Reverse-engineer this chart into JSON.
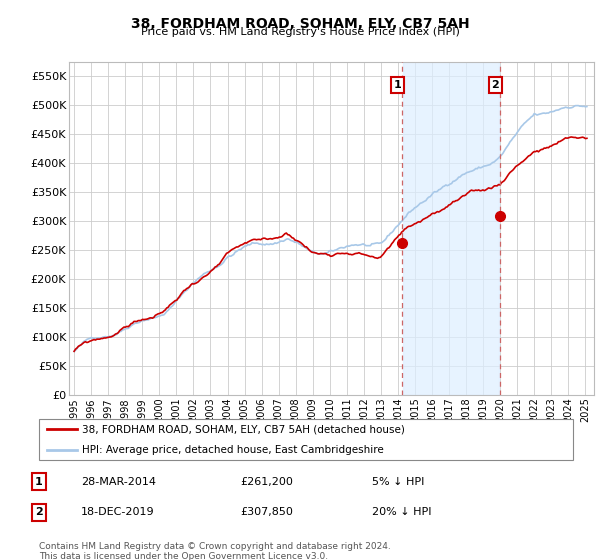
{
  "title": "38, FORDHAM ROAD, SOHAM, ELY, CB7 5AH",
  "subtitle": "Price paid vs. HM Land Registry's House Price Index (HPI)",
  "legend_line1": "38, FORDHAM ROAD, SOHAM, ELY, CB7 5AH (detached house)",
  "legend_line2": "HPI: Average price, detached house, East Cambridgeshire",
  "sale1_label": "1",
  "sale1_date": "28-MAR-2014",
  "sale1_price": "£261,200",
  "sale1_hpi": "5% ↓ HPI",
  "sale2_label": "2",
  "sale2_date": "18-DEC-2019",
  "sale2_price": "£307,850",
  "sale2_hpi": "20% ↓ HPI",
  "footnote": "Contains HM Land Registry data © Crown copyright and database right 2024.\nThis data is licensed under the Open Government Licence v3.0.",
  "hpi_color": "#a8c8e8",
  "price_color": "#cc0000",
  "vline_color": "#cc6666",
  "shaded_region_color": "#ddeeff",
  "background_color": "#ffffff",
  "grid_color": "#cccccc",
  "ylim": [
    0,
    575000
  ],
  "yticks": [
    0,
    50000,
    100000,
    150000,
    200000,
    250000,
    300000,
    350000,
    400000,
    450000,
    500000,
    550000
  ],
  "x_start_year": 1995,
  "x_end_year": 2025,
  "sale1_year": 2014.23,
  "sale2_year": 2019.97,
  "sale1_price_val": 261200,
  "sale2_price_val": 307850
}
